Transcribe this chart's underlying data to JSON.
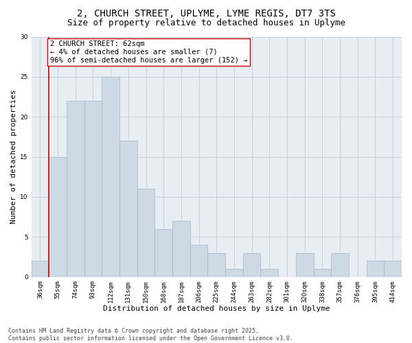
{
  "title_line1": "2, CHURCH STREET, UPLYME, LYME REGIS, DT7 3TS",
  "title_line2": "Size of property relative to detached houses in Uplyme",
  "xlabel": "Distribution of detached houses by size in Uplyme",
  "ylabel": "Number of detached properties",
  "categories": [
    "36sqm",
    "55sqm",
    "74sqm",
    "93sqm",
    "112sqm",
    "131sqm",
    "150sqm",
    "168sqm",
    "187sqm",
    "206sqm",
    "225sqm",
    "244sqm",
    "263sqm",
    "282sqm",
    "301sqm",
    "320sqm",
    "338sqm",
    "357sqm",
    "376sqm",
    "395sqm",
    "414sqm"
  ],
  "values": [
    2,
    15,
    22,
    22,
    25,
    17,
    11,
    6,
    7,
    4,
    3,
    1,
    3,
    1,
    0,
    3,
    1,
    3,
    0,
    2,
    2
  ],
  "bar_color": "#cdd9e5",
  "bar_edge_color": "#aabccc",
  "bar_linewidth": 0.6,
  "vline_x": 0.5,
  "vline_color": "#cc0000",
  "vline_linewidth": 1.2,
  "annotation_text": "2 CHURCH STREET: 62sqm\n← 4% of detached houses are smaller (7)\n96% of semi-detached houses are larger (152) →",
  "annotation_box_color": "#ffffff",
  "annotation_box_edge": "#cc0000",
  "ylim": [
    0,
    30
  ],
  "yticks": [
    0,
    5,
    10,
    15,
    20,
    25,
    30
  ],
  "grid_color": "#c0ccd8",
  "bg_color": "#e8edf4",
  "footer_text": "Contains HM Land Registry data © Crown copyright and database right 2025.\nContains public sector information licensed under the Open Government Licence v3.0.",
  "title_fontsize": 10,
  "subtitle_fontsize": 9,
  "axis_label_fontsize": 8,
  "tick_fontsize": 6.5,
  "annotation_fontsize": 7.5,
  "footer_fontsize": 6
}
